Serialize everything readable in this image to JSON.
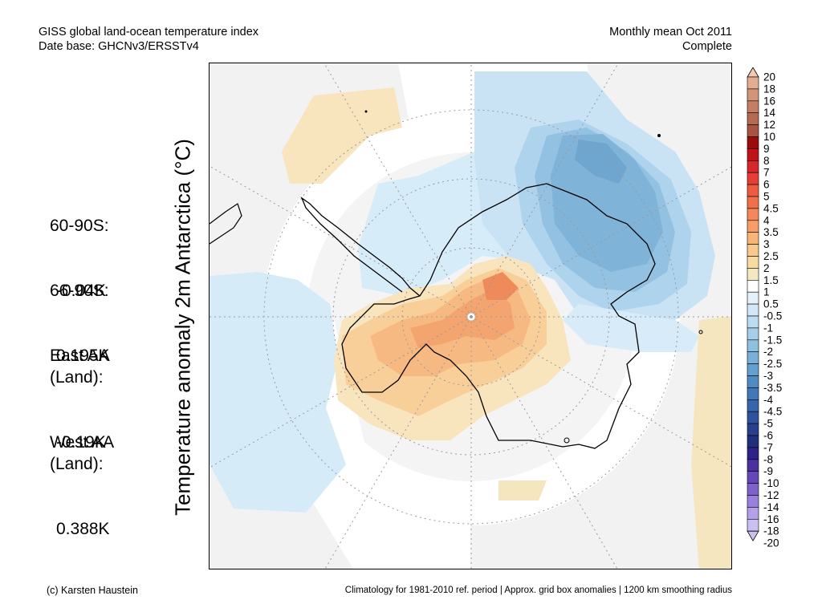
{
  "header": {
    "line1": "GISS global land-ocean temperature index",
    "line2": "Date base: GHCNv3/ERSSTv4",
    "period": "Monthly mean Oct 2011",
    "status": "Complete"
  },
  "y_axis_label": "Temperature anomaly 2m Antarctica (°C)",
  "stats": [
    {
      "label": "60-90S:",
      "value": "-0.04K"
    },
    {
      "label": "66-90S:",
      "value": "0.195K"
    },
    {
      "label": "East AA\n(Land):",
      "value": "-0.19K"
    },
    {
      "label": "West AA\n(Land):",
      "value": "0.388K"
    }
  ],
  "footer": {
    "credit": "(c) Karsten Haustein",
    "note": "Climatology for 1981-2010 ref. period | Approx. grid box anomalies | 1200 km smoothing radius"
  },
  "colorbar": {
    "labels": [
      "20",
      "18",
      "16",
      "14",
      "12",
      "10",
      "9",
      "8",
      "7",
      "6",
      "5",
      "4.5",
      "4",
      "3.5",
      "3",
      "2.5",
      "2",
      "1.5",
      "1",
      "0.5",
      "-0.5",
      "-1",
      "-1.5",
      "-2",
      "-2.5",
      "-3",
      "-3.5",
      "-4",
      "-4.5",
      "-5",
      "-6",
      "-7",
      "-8",
      "-9",
      "-10",
      "-12",
      "-14",
      "-16",
      "-18",
      "-20"
    ],
    "colors": [
      "#f5c9ae",
      "#e3ad91",
      "#d39578",
      "#c47e63",
      "#b56a51",
      "#a85442",
      "#9c0a0a",
      "#c1121a",
      "#d8262a",
      "#e63e35",
      "#ee5b3f",
      "#f1704a",
      "#f5875a",
      "#f79d67",
      "#f9b478",
      "#f9c98b",
      "#f7dba1",
      "#f5e8be",
      "#ffffff",
      "#e3f1fa",
      "#d2e8f6",
      "#bcdcef",
      "#a6cee8",
      "#8fc0e0",
      "#78b0d8",
      "#639fcf",
      "#4f8cc4",
      "#4278b8",
      "#3765ab",
      "#2e529d",
      "#27408d",
      "#20307c",
      "#2d2287",
      "#4a30a0",
      "#6548b8",
      "#7d62cc",
      "#9980dd",
      "#b49fe9",
      "#ccc0f2"
    ]
  },
  "map": {
    "land_color": "#f2f2f2",
    "ocean_color": "#ffffff",
    "coast_color": "#000000",
    "grid_color": "#9a9a9a"
  }
}
